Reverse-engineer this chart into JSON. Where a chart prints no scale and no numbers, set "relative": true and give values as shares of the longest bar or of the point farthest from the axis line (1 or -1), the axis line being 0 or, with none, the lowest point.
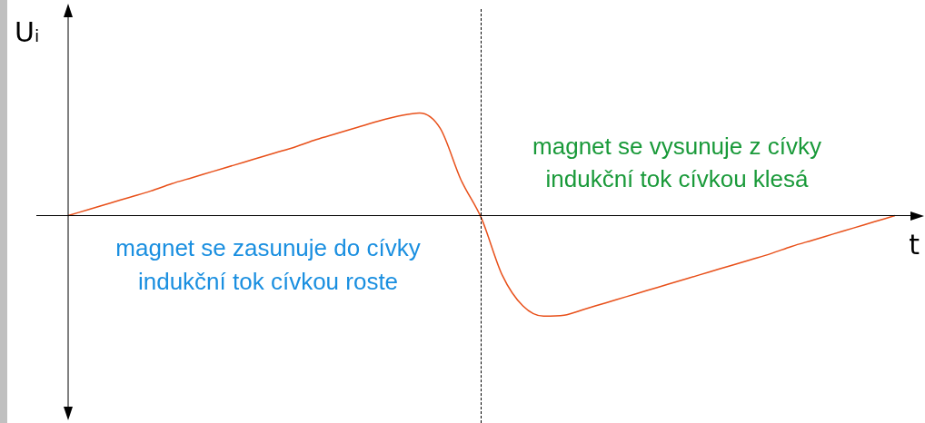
{
  "chart_data": {
    "type": "line",
    "relative": true,
    "xlabel": "t",
    "ylabel": "Uᵢ",
    "marker": "none",
    "categories": [
      null,
      null,
      null,
      null,
      null,
      null,
      null,
      null,
      null,
      null,
      null,
      null,
      null,
      null,
      null,
      null,
      null,
      null,
      null,
      null,
      null,
      null,
      null,
      null,
      null,
      null,
      null,
      null,
      null,
      null,
      null,
      null,
      null,
      null,
      null,
      null,
      null,
      null,
      null,
      null,
      null
    ],
    "series": [
      {
        "color": "#e8501a",
        "values": [
          0,
          0.06,
          0.12,
          0.18,
          0.24,
          0.31,
          0.37,
          0.43,
          0.49,
          0.55,
          0.61,
          0.67,
          0.74,
          0.8,
          0.86,
          0.92,
          0.97,
          1,
          0.85,
          0.35,
          -0.03,
          -0.58,
          -0.88,
          -0.98,
          -0.97,
          -0.91,
          -0.85,
          -0.79,
          -0.73,
          -0.67,
          -0.61,
          -0.55,
          -0.49,
          -0.43,
          -0.37,
          -0.3,
          -0.24,
          -0.18,
          -0.12,
          -0.06,
          0
        ]
      }
    ],
    "annotations": [
      "magnet se zasunuje do cívky",
      "indukční tok cívkou roste",
      "magnet se vysunuje z cívky",
      "indukční tok cívkou klesá"
    ]
  }
}
